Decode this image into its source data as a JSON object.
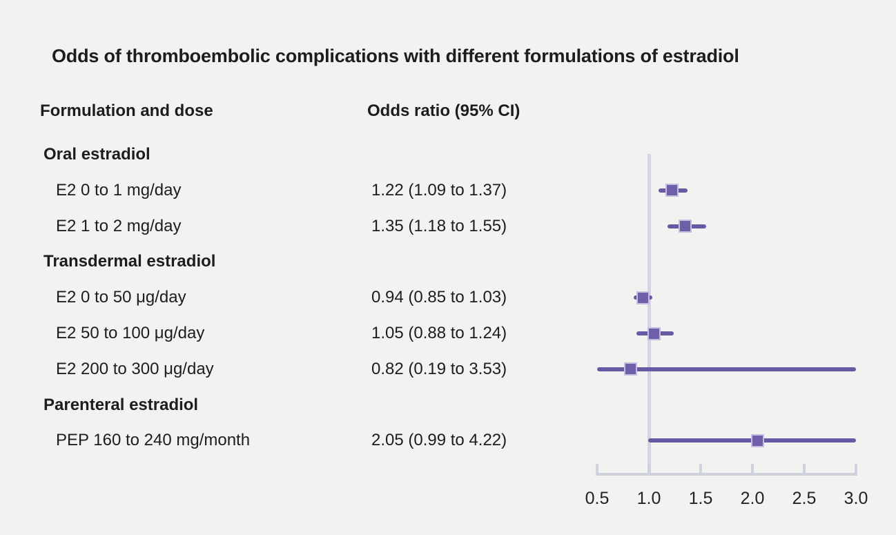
{
  "title": "Odds of thromboembolic complications with different formulations of estradiol",
  "columns": {
    "formulation": "Formulation and dose",
    "odds": "Odds ratio (95% CI)"
  },
  "colors": {
    "background": "#f2f2f1",
    "text": "#1d1d1b",
    "ci_line": "#675aa5",
    "marker_fill": "#6e5fa8",
    "marker_border": "#c6bede",
    "reference_line": "#d2d6e0",
    "axis": "#cdd2dd"
  },
  "chart_data": {
    "type": "forest",
    "title": "Odds of thromboembolic complications with different formulations of estradiol",
    "xlabel": "",
    "ylabel": "",
    "axis": {
      "min": 0.5,
      "max": 3.0,
      "ticks": [
        "0.5",
        "1.0",
        "1.5",
        "2.0",
        "2.5",
        "3.0"
      ],
      "tick_values": [
        0.5,
        1.0,
        1.5,
        2.0,
        2.5,
        3.0
      ],
      "reference_value": 1.0,
      "grid": false
    },
    "rows": [
      {
        "kind": "group",
        "label": "Oral estradiol"
      },
      {
        "kind": "item",
        "label": "E2 0 to 1 mg/day",
        "or_text": "1.22 (1.09 to 1.37)",
        "or": 1.22,
        "lo": 1.09,
        "hi": 1.37
      },
      {
        "kind": "item",
        "label": "E2 1 to 2 mg/day",
        "or_text": "1.35 (1.18 to 1.55)",
        "or": 1.35,
        "lo": 1.18,
        "hi": 1.55
      },
      {
        "kind": "group",
        "label": "Transdermal estradiol"
      },
      {
        "kind": "item",
        "label": "E2 0 to 50 μg/day",
        "or_text": "0.94 (0.85 to 1.03)",
        "or": 0.94,
        "lo": 0.85,
        "hi": 1.03
      },
      {
        "kind": "item",
        "label": "E2 50 to 100 μg/day",
        "or_text": "1.05 (0.88 to 1.24)",
        "or": 1.05,
        "lo": 0.88,
        "hi": 1.24
      },
      {
        "kind": "item",
        "label": "E2 200 to 300 μg/day",
        "or_text": "0.82 (0.19 to 3.53)",
        "or": 0.82,
        "lo": 0.19,
        "hi": 3.53
      },
      {
        "kind": "group",
        "label": "Parenteral estradiol"
      },
      {
        "kind": "item",
        "label": "PEP 160 to 240 mg/month",
        "or_text": "2.05 (0.99 to 4.22)",
        "or": 2.05,
        "lo": 0.99,
        "hi": 4.22
      }
    ]
  }
}
